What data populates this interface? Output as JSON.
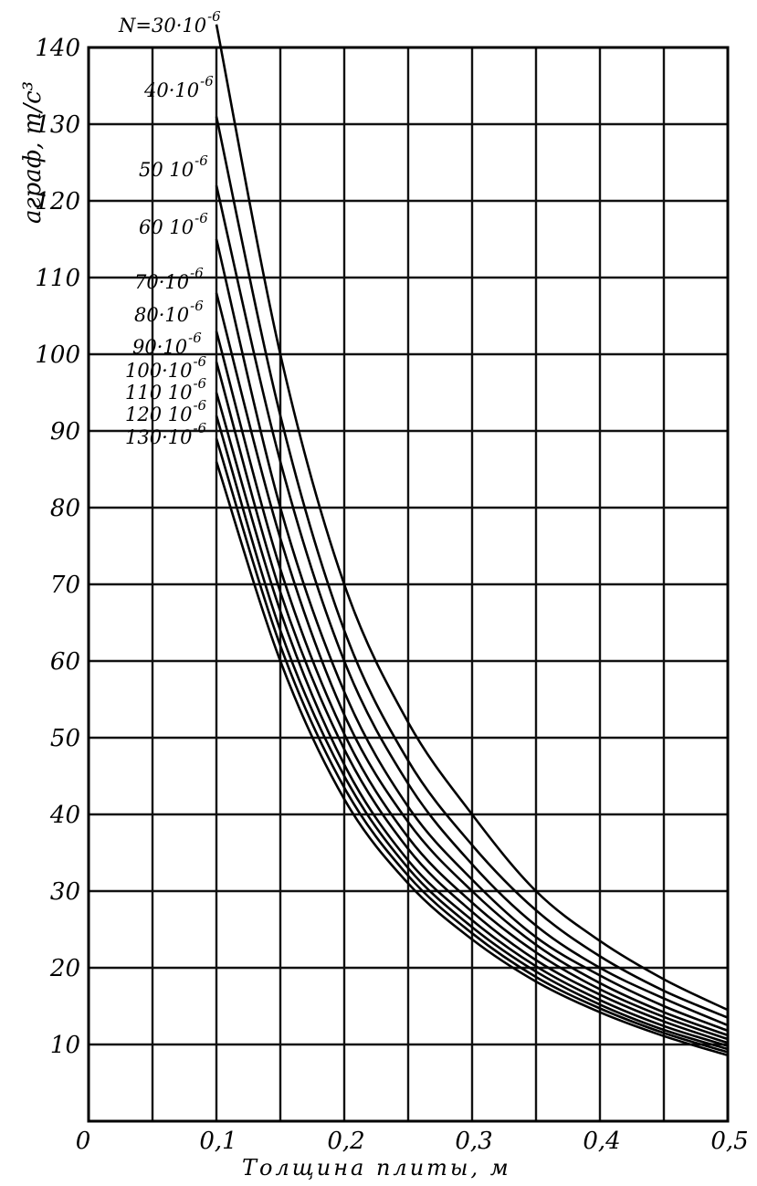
{
  "chart_data": {
    "type": "line",
    "title": "",
    "xlabel": "Толщина плиты, м",
    "ylabel": "aграф, т/с³",
    "xlim": [
      0,
      0.5
    ],
    "ylim": [
      0,
      140
    ],
    "grid": true,
    "x_ticks": [
      "0",
      "0,1",
      "0,2",
      "0,3",
      "0,4",
      "0,5"
    ],
    "y_ticks": [
      "10",
      "20",
      "30",
      "40",
      "50",
      "60",
      "70",
      "80",
      "90",
      "100",
      "110",
      "120",
      "130",
      "140"
    ],
    "x": [
      0.1,
      0.15,
      0.2,
      0.25,
      0.3,
      0.35,
      0.4,
      0.45,
      0.5
    ],
    "series": [
      {
        "name": "N=30·10⁻⁶",
        "values": [
          143,
          100,
          70,
          52,
          40,
          30,
          23.5,
          18.5,
          14.5
        ]
      },
      {
        "name": "40·10⁻⁶",
        "values": [
          131,
          92,
          64,
          47,
          36,
          27.5,
          21.5,
          17,
          13.5
        ]
      },
      {
        "name": "50·10⁻⁶",
        "values": [
          122,
          86,
          60,
          44,
          33.5,
          25.5,
          20,
          16,
          12.5
        ]
      },
      {
        "name": "60·10⁻⁶",
        "values": [
          115,
          80,
          56,
          41,
          31.5,
          24,
          19,
          15,
          11.8
        ]
      },
      {
        "name": "70·10⁻⁶",
        "values": [
          108,
          76,
          53,
          39,
          30,
          23,
          18,
          14.2,
          11.2
        ]
      },
      {
        "name": "80·10⁻⁶",
        "values": [
          103,
          72,
          50.5,
          37,
          28.5,
          22,
          17.2,
          13.6,
          10.7
        ]
      },
      {
        "name": "90·10⁻⁶",
        "values": [
          99,
          69,
          48.5,
          35.5,
          27.3,
          21,
          16.5,
          13,
          10.2
        ]
      },
      {
        "name": "100·10⁻⁶",
        "values": [
          95,
          66.5,
          46.5,
          34,
          26.2,
          20.2,
          15.8,
          12.4,
          9.8
        ]
      },
      {
        "name": "110·10⁻⁶",
        "values": [
          92,
          64,
          45,
          33,
          25.3,
          19.5,
          15.2,
          11.9,
          9.4
        ]
      },
      {
        "name": "120·10⁻⁶",
        "values": [
          89,
          62,
          43.5,
          32,
          24.5,
          18.8,
          14.7,
          11.5,
          9
        ]
      },
      {
        "name": "130·10⁻⁶",
        "values": [
          86,
          60,
          42,
          31,
          23.7,
          18.2,
          14.2,
          11.1,
          8.6
        ]
      }
    ],
    "series_labels": [
      {
        "base": "N=30·10",
        "exp": "-6"
      },
      {
        "base": "40·10",
        "exp": "-6"
      },
      {
        "base": "50 10",
        "exp": "-6"
      },
      {
        "base": "60 10",
        "exp": "-6"
      },
      {
        "base": "70·10",
        "exp": "-6"
      },
      {
        "base": "80·10",
        "exp": "-6"
      },
      {
        "base": "90·10",
        "exp": "-6"
      },
      {
        "base": "100·10",
        "exp": "-6"
      },
      {
        "base": "110 10",
        "exp": "-6"
      },
      {
        "base": "120 10",
        "exp": "-6"
      },
      {
        "base": "130·10",
        "exp": "-6"
      }
    ]
  }
}
